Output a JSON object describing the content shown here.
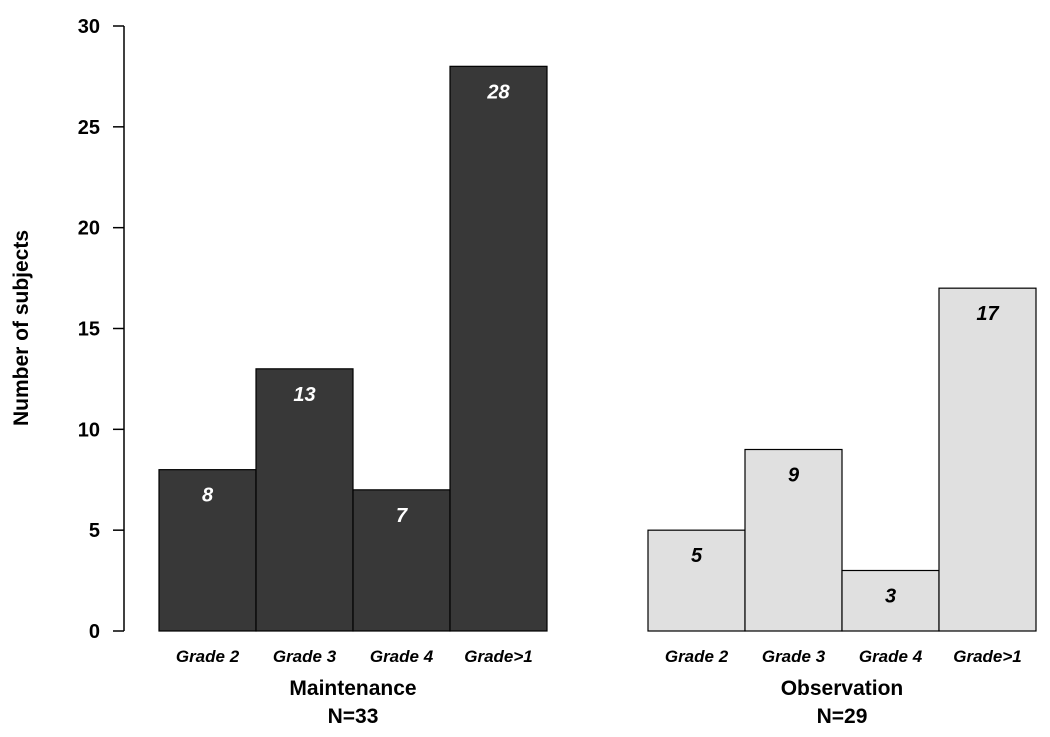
{
  "chart_data": {
    "type": "bar",
    "ylabel": "Number of subjects",
    "ylim": [
      0,
      30
    ],
    "yticks": [
      0,
      5,
      10,
      15,
      20,
      25,
      30
    ],
    "categories": [
      "Grade 2",
      "Grade 3",
      "Grade 4",
      "Grade>1"
    ],
    "series": [
      {
        "name": "Maintenance",
        "n_label": "N=33",
        "values": [
          8,
          13,
          7,
          28
        ],
        "color": "#383838",
        "label_color": "#ffffff"
      },
      {
        "name": "Observation",
        "n_label": "N=29",
        "values": [
          5,
          9,
          3,
          17
        ],
        "color": "#e0e0e0",
        "label_color": "#000000"
      }
    ],
    "grid": false
  }
}
